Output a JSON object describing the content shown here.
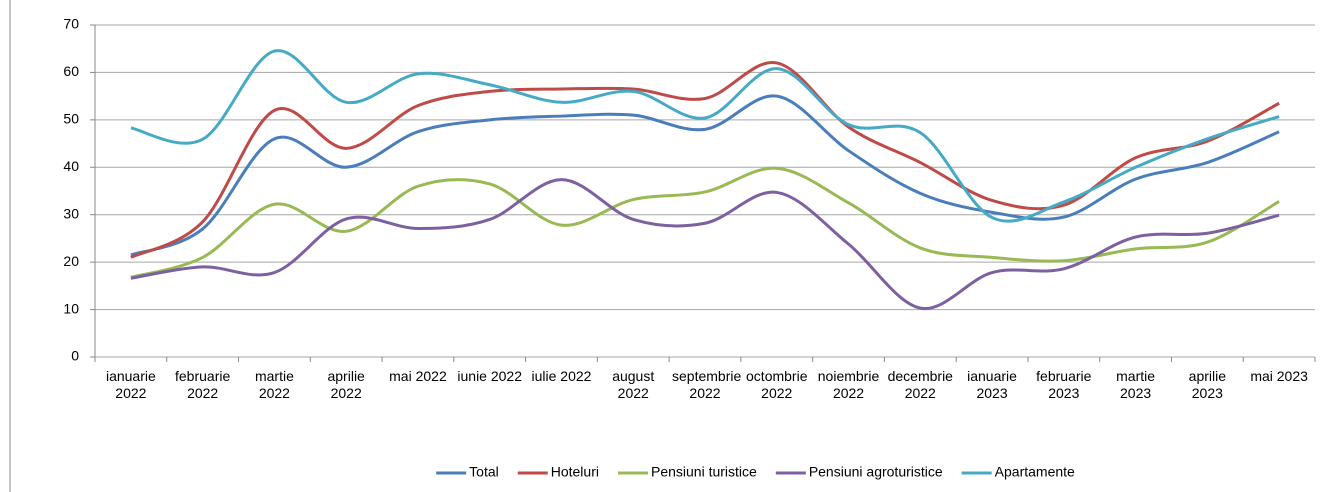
{
  "chart_data": {
    "type": "line",
    "categories": [
      "ianuarie 2022",
      "februarie 2022",
      "martie 2022",
      "aprilie 2022",
      "mai 2022",
      "iunie 2022",
      "iulie 2022",
      "august 2022",
      "septembrie 2022",
      "octombrie 2022",
      "noiembrie 2022",
      "decembrie 2022",
      "ianuarie 2023",
      "februarie 2023",
      "martie 2023",
      "aprilie 2023",
      "mai 2023"
    ],
    "series": [
      {
        "name": "Total",
        "color": "#4a7ebb",
        "values": [
          21.5,
          27,
          46,
          40,
          47.5,
          50,
          50.8,
          51,
          48,
          55,
          43.5,
          34.5,
          30.5,
          29.5,
          37.5,
          41,
          47.5
        ]
      },
      {
        "name": "Hoteluri",
        "color": "#be4b48",
        "values": [
          21,
          28.5,
          52,
          44,
          53,
          56,
          56.5,
          56.5,
          54.5,
          62,
          48.5,
          41,
          33,
          32,
          42,
          45.5,
          53.5
        ]
      },
      {
        "name": "Pensiuni turistice",
        "color": "#98b954",
        "values": [
          16.8,
          21,
          32.2,
          26.5,
          36,
          36.5,
          27.8,
          33.2,
          34.8,
          39.8,
          32.5,
          23,
          21,
          20.3,
          22.8,
          24.2,
          32.8
        ]
      },
      {
        "name": "Pensiuni agroturistice",
        "color": "#7d60a0",
        "values": [
          16.6,
          19,
          17.8,
          29.1,
          27.1,
          29,
          37.4,
          29,
          28.2,
          34.7,
          23.8,
          10.3,
          17.8,
          18.6,
          25.3,
          26.1,
          29.9
        ]
      },
      {
        "name": "Apartamente",
        "color": "#46aac5",
        "values": [
          48.3,
          45.9,
          64.5,
          53.7,
          59.7,
          57.4,
          53.7,
          56,
          50.4,
          60.8,
          49,
          47.3,
          29.4,
          32.7,
          40,
          46,
          50.7
        ]
      }
    ],
    "ylim": [
      0,
      70
    ],
    "yticks": [
      0,
      10,
      20,
      30,
      40,
      50,
      60,
      70
    ],
    "grid": true,
    "legend": "bottom",
    "smooth": true
  }
}
